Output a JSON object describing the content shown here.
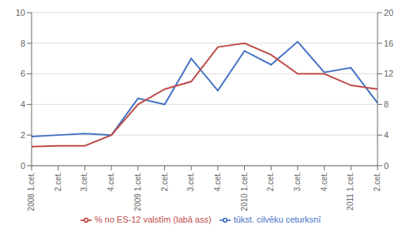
{
  "chart_data": {
    "type": "line",
    "categories": [
      "2008 1.cet.",
      "2.cet.",
      "3.cet.",
      "4.cet.",
      "2009 1.cet.",
      "2.cet.",
      "3.cet.",
      "4.cet.",
      "2010 1.cet.",
      "2.cet.",
      "3.cet.",
      "4.cet.",
      "2011 1.cet.",
      "2.cet."
    ],
    "series": [
      {
        "name": "tūkst. cilvēku ceturksnī",
        "color": "#4472C4",
        "values": [
          1.9,
          2.0,
          2.1,
          2.0,
          4.4,
          4.0,
          7.0,
          4.9,
          7.5,
          6.6,
          8.1,
          6.1,
          6.4,
          4.1
        ]
      },
      {
        "name": "% no ES-12 valstīm (labā ass)",
        "color": "#BE4B48",
        "axis": "y2",
        "values": [
          2.5,
          2.6,
          2.6,
          4.0,
          8.0,
          10.0,
          11.0,
          15.5,
          16.0,
          14.5,
          12.0,
          12.0,
          10.5,
          10.0
        ]
      }
    ],
    "ylim": [
      0,
      10
    ],
    "yticks": [
      0,
      2,
      4,
      6,
      8,
      10
    ],
    "y2lim": [
      0,
      20
    ],
    "y2ticks": [
      0,
      4,
      8,
      12,
      16,
      20
    ],
    "grid": true,
    "legend": "bottom"
  }
}
